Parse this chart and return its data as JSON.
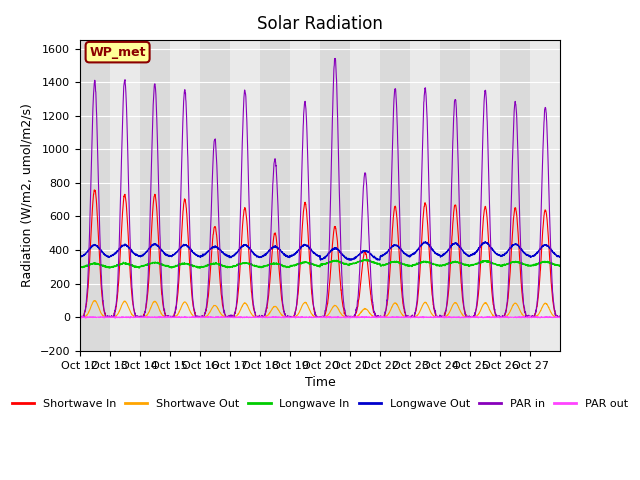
{
  "title": "Solar Radiation",
  "ylabel": "Radiation (W/m2, umol/m2/s)",
  "xlabel": "Time",
  "ylim": [
    -200,
    1650
  ],
  "yticks": [
    -200,
    0,
    200,
    400,
    600,
    800,
    1000,
    1200,
    1400,
    1600
  ],
  "xtick_labels": [
    "Oct 12",
    "Oct 13",
    "Oct 14",
    "Oct 15",
    "Oct 16",
    "Oct 17",
    "Oct 18",
    "Oct 19",
    "Oct 20",
    "Oct 21",
    "Oct 22",
    "Oct 23",
    "Oct 24",
    "Oct 25",
    "Oct 26",
    "Oct 27"
  ],
  "annotation_text": "WP_met",
  "annotation_color": "#8B0000",
  "annotation_bg": "#FFFF99",
  "line_colors": {
    "shortwave_in": "#FF0000",
    "shortwave_out": "#FFA500",
    "longwave_in": "#00CC00",
    "longwave_out": "#0000CC",
    "par_in": "#8800BB",
    "par_out": "#FF44FF"
  },
  "legend_labels": [
    "Shortwave In",
    "Shortwave Out",
    "Longwave In",
    "Longwave Out",
    "PAR in",
    "PAR out"
  ],
  "plot_bg": "#EBEBEB",
  "n_days": 16,
  "pts_per_day": 144
}
